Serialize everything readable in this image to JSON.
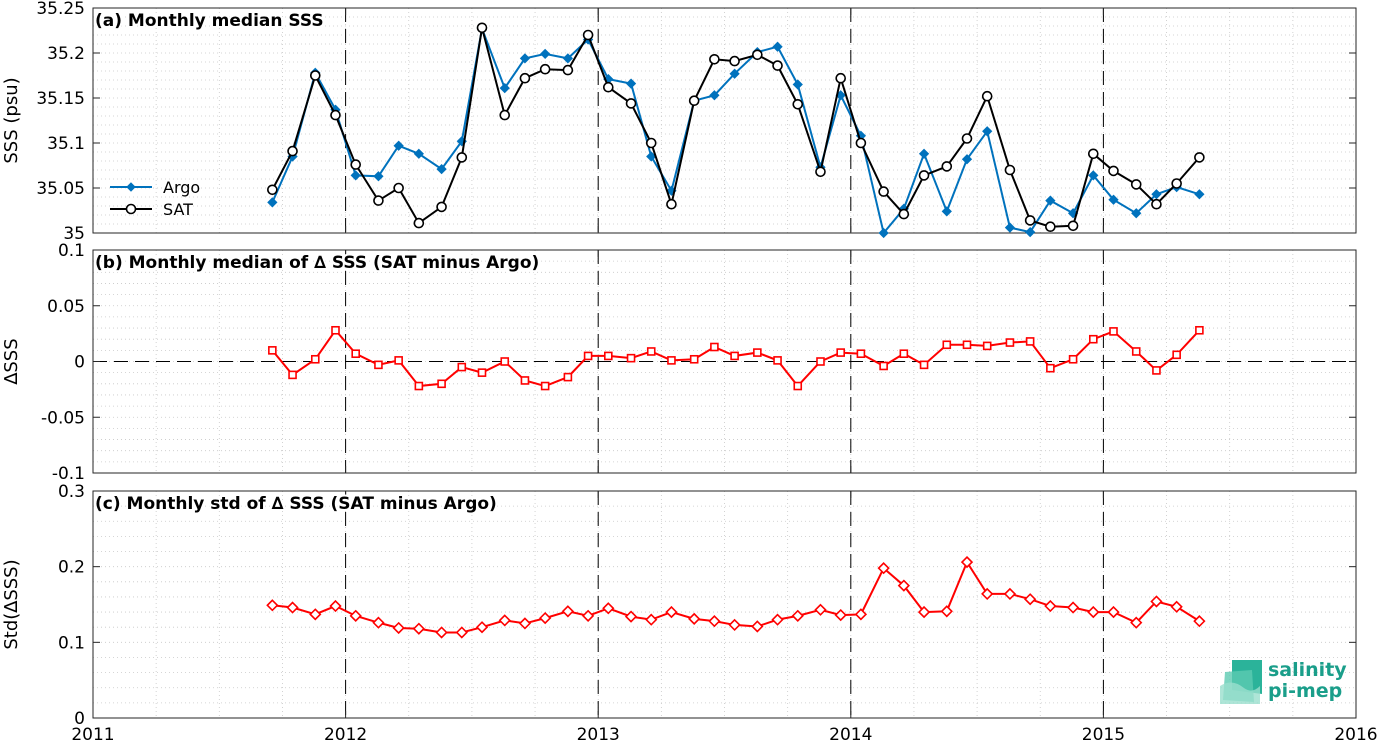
{
  "chart_data": [
    {
      "type": "line",
      "title": "(a) Monthly median SSS",
      "xlabel": "",
      "ylabel": "SSS (psu)",
      "xlim": [
        2011,
        2016
      ],
      "ylim": [
        35,
        35.25
      ],
      "yticks": [
        "35",
        "35.05",
        "35.1",
        "35.15",
        "35.2",
        "35.25"
      ],
      "grid": true,
      "legend_position": "left",
      "x": [
        2011.71,
        2011.79,
        2011.88,
        2011.96,
        2012.04,
        2012.13,
        2012.21,
        2012.29,
        2012.38,
        2012.46,
        2012.54,
        2012.63,
        2012.71,
        2012.79,
        2012.88,
        2012.96,
        2013.04,
        2013.13,
        2013.21,
        2013.29,
        2013.38,
        2013.46,
        2013.54,
        2013.63,
        2013.71,
        2013.79,
        2013.88,
        2013.96,
        2014.04,
        2014.13,
        2014.21,
        2014.29,
        2014.38,
        2014.46,
        2014.54,
        2014.63,
        2014.71,
        2014.79,
        2014.88,
        2014.96,
        2015.04,
        2015.13,
        2015.21,
        2015.29,
        2015.38
      ],
      "series": [
        {
          "name": "Argo",
          "color": "#0072bd",
          "marker": "diamond",
          "values": [
            35.034,
            35.085,
            35.178,
            35.137,
            35.064,
            35.063,
            35.097,
            35.088,
            35.071,
            35.102,
            35.227,
            35.161,
            35.194,
            35.199,
            35.194,
            35.215,
            35.171,
            35.166,
            35.085,
            35.047,
            35.147,
            35.153,
            35.177,
            35.201,
            35.207,
            35.165,
            35.073,
            35.153,
            35.108,
            35.0,
            35.027,
            35.088,
            35.024,
            35.082,
            35.113,
            35.006,
            35.001,
            35.036,
            35.022,
            35.064,
            35.037,
            35.022,
            35.043,
            35.051,
            35.043
          ]
        },
        {
          "name": "SAT",
          "color": "#000000",
          "marker": "circle",
          "values": [
            35.048,
            35.091,
            35.175,
            35.131,
            35.076,
            35.036,
            35.05,
            35.011,
            35.029,
            35.084,
            35.228,
            35.131,
            35.172,
            35.182,
            35.181,
            35.22,
            35.162,
            35.144,
            35.1,
            35.032,
            35.147,
            35.193,
            35.191,
            35.198,
            35.186,
            35.143,
            35.068,
            35.172,
            35.1,
            35.046,
            35.021,
            35.064,
            35.074,
            35.105,
            35.152,
            35.07,
            35.014,
            35.007,
            35.008,
            35.088,
            35.069,
            35.054,
            35.032,
            35.055,
            35.084
          ]
        }
      ]
    },
    {
      "type": "line",
      "title": "(b) Monthly median of ∆ SSS (SAT minus Argo)",
      "xlabel": "",
      "ylabel": "∆SSS",
      "xlim": [
        2011,
        2016
      ],
      "ylim": [
        -0.1,
        0.1
      ],
      "yticks": [
        "-0.1",
        "-0.05",
        "0",
        "0.05",
        "0.1"
      ],
      "grid": true,
      "x": [
        2011.71,
        2011.79,
        2011.88,
        2011.96,
        2012.04,
        2012.13,
        2012.21,
        2012.29,
        2012.38,
        2012.46,
        2012.54,
        2012.63,
        2012.71,
        2012.79,
        2012.88,
        2012.96,
        2013.04,
        2013.13,
        2013.21,
        2013.29,
        2013.38,
        2013.46,
        2013.54,
        2013.63,
        2013.71,
        2013.79,
        2013.88,
        2013.96,
        2014.04,
        2014.13,
        2014.21,
        2014.29,
        2014.38,
        2014.46,
        2014.54,
        2014.63,
        2014.71,
        2014.79,
        2014.88,
        2014.96,
        2015.04,
        2015.13,
        2015.21,
        2015.29,
        2015.38
      ],
      "series": [
        {
          "color": "#ff0000",
          "marker": "square",
          "values": [
            0.01,
            -0.012,
            0.002,
            0.028,
            0.007,
            -0.003,
            0.001,
            -0.022,
            -0.02,
            -0.005,
            -0.01,
            0.0,
            -0.017,
            -0.022,
            -0.014,
            0.005,
            0.005,
            0.003,
            0.009,
            0.001,
            0.002,
            0.013,
            0.005,
            0.008,
            0.001,
            -0.022,
            0.0,
            0.008,
            0.007,
            -0.004,
            0.007,
            -0.003,
            0.015,
            0.015,
            0.014,
            0.017,
            0.018,
            -0.006,
            0.002,
            0.02,
            0.027,
            0.009,
            -0.008,
            0.006,
            0.028
          ]
        }
      ]
    },
    {
      "type": "line",
      "title": "(c) Monthly std of ∆ SSS (SAT minus Argo)",
      "xlabel": "",
      "ylabel": "Std(∆SSS)",
      "xlim": [
        2011,
        2016
      ],
      "ylim": [
        0,
        0.3
      ],
      "yticks": [
        "0",
        "0.1",
        "0.2",
        "0.3"
      ],
      "xticks": [
        "2011",
        "2012",
        "2013",
        "2014",
        "2015",
        "2016"
      ],
      "grid": true,
      "x": [
        2011.71,
        2011.79,
        2011.88,
        2011.96,
        2012.04,
        2012.13,
        2012.21,
        2012.29,
        2012.38,
        2012.46,
        2012.54,
        2012.63,
        2012.71,
        2012.79,
        2012.88,
        2012.96,
        2013.04,
        2013.13,
        2013.21,
        2013.29,
        2013.38,
        2013.46,
        2013.54,
        2013.63,
        2013.71,
        2013.79,
        2013.88,
        2013.96,
        2014.04,
        2014.13,
        2014.21,
        2014.29,
        2014.38,
        2014.46,
        2014.54,
        2014.63,
        2014.71,
        2014.79,
        2014.88,
        2014.96,
        2015.04,
        2015.13,
        2015.21,
        2015.29,
        2015.38
      ],
      "series": [
        {
          "color": "#ff0000",
          "marker": "diamond",
          "values": [
            0.149,
            0.146,
            0.137,
            0.148,
            0.135,
            0.126,
            0.119,
            0.118,
            0.113,
            0.113,
            0.12,
            0.129,
            0.125,
            0.132,
            0.141,
            0.135,
            0.145,
            0.134,
            0.13,
            0.14,
            0.131,
            0.128,
            0.123,
            0.121,
            0.13,
            0.135,
            0.143,
            0.136,
            0.137,
            0.198,
            0.175,
            0.14,
            0.141,
            0.206,
            0.164,
            0.164,
            0.157,
            0.148,
            0.146,
            0.14,
            0.14,
            0.126,
            0.154,
            0.147,
            0.128
          ]
        }
      ]
    }
  ],
  "logo": {
    "line1": "salinity",
    "line2": "pi-mep"
  }
}
